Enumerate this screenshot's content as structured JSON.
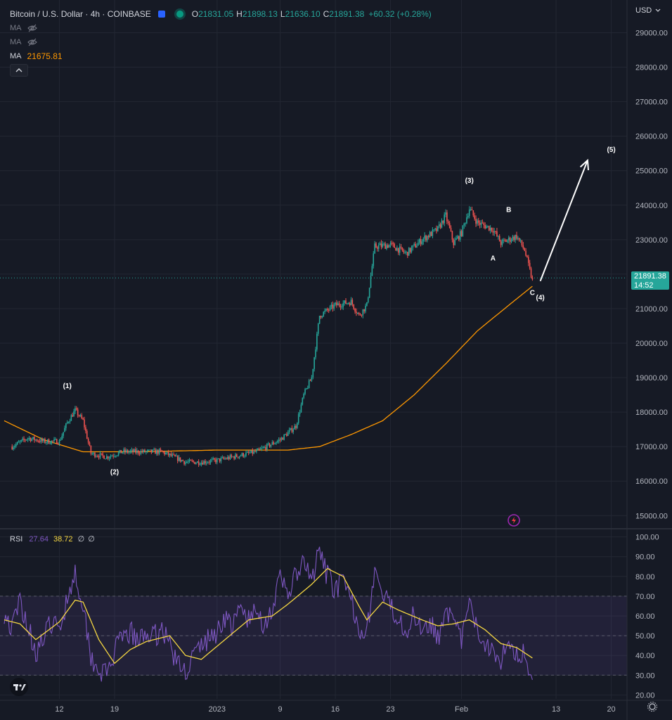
{
  "header": {
    "symbol_title": "Bitcoin / U.S. Dollar · 4h · COINBASE",
    "open_label": "O",
    "open": "21831.05",
    "high_label": "H",
    "high": "21898.13",
    "low_label": "L",
    "low": "21636.10",
    "close_label": "C",
    "close": "21891.38",
    "change": "+60.32 (+0.28%)",
    "flag_icon": "flag-icon",
    "live_icon": "live-status-icon"
  },
  "indicators": {
    "ma1_label": "MA",
    "ma2_label": "MA",
    "ma3_label": "MA",
    "ma3_value": "21675.81",
    "hidden_icon": "eye-off-icon",
    "collapse_icon": "chevron-up-icon"
  },
  "price_scale": {
    "currency": "USD",
    "current_price": "21891.38",
    "countdown": "14:52"
  },
  "rsi_legend": {
    "label": "RSI",
    "value": "27.64",
    "ma_value": "38.72",
    "extra1": "∅",
    "extra2": "∅"
  },
  "colors": {
    "background": "#161A25",
    "up": "#26A69A",
    "down": "#EF5350",
    "ma": "#FF9800",
    "rsi": "#7E57C2",
    "rsi_ma": "#F5D742",
    "grid": "#232733"
  },
  "chart_data": [
    {
      "type": "candlestick",
      "ylim": [
        14700,
        29500
      ],
      "y_ticks": [
        "29000.00",
        "28000.00",
        "27000.00",
        "26000.00",
        "25000.00",
        "24000.00",
        "23000.00",
        "22000.00",
        "21000.00",
        "20000.00",
        "19000.00",
        "18000.00",
        "17000.00",
        "16000.00",
        "15000.00"
      ],
      "y_tick_values": [
        29000,
        28000,
        27000,
        26000,
        25000,
        24000,
        23000,
        22000,
        21000,
        20000,
        19000,
        18000,
        17000,
        16000,
        15000
      ],
      "x_ticks": [
        "12",
        "19",
        "2023",
        "9",
        "16",
        "23",
        "Feb",
        "13",
        "20"
      ],
      "x_tick_dates": [
        "2022-12-12",
        "2022-12-19",
        "2023-01-01",
        "2023-01-09",
        "2023-01-16",
        "2023-01-23",
        "2023-02-01",
        "2023-02-13",
        "2023-02-20"
      ],
      "x_range": [
        "2022-12-05",
        "2023-02-22"
      ],
      "close_path": [
        [
          "2022-12-06",
          17000
        ],
        [
          "2022-12-08",
          17250
        ],
        [
          "2022-12-10",
          17150
        ],
        [
          "2022-12-12",
          17150
        ],
        [
          "2022-12-13",
          17700
        ],
        [
          "2022-12-14",
          18050
        ],
        [
          "2022-12-15",
          17750
        ],
        [
          "2022-12-16",
          16800
        ],
        [
          "2022-12-18",
          16700
        ],
        [
          "2022-12-20",
          16850
        ],
        [
          "2022-12-22",
          16850
        ],
        [
          "2022-12-25",
          16850
        ],
        [
          "2022-12-28",
          16550
        ],
        [
          "2022-12-30",
          16550
        ],
        [
          "2023-01-01",
          16600
        ],
        [
          "2023-01-03",
          16700
        ],
        [
          "2023-01-06",
          16850
        ],
        [
          "2023-01-09",
          17200
        ],
        [
          "2023-01-11",
          17600
        ],
        [
          "2023-01-12",
          18500
        ],
        [
          "2023-01-13",
          19000
        ],
        [
          "2023-01-14",
          20800
        ],
        [
          "2023-01-16",
          21100
        ],
        [
          "2023-01-18",
          21200
        ],
        [
          "2023-01-19",
          20800
        ],
        [
          "2023-01-20",
          21100
        ],
        [
          "2023-01-21",
          22800
        ],
        [
          "2023-01-23",
          22850
        ],
        [
          "2023-01-25",
          22600
        ],
        [
          "2023-01-27",
          23000
        ],
        [
          "2023-01-29",
          23300
        ],
        [
          "2023-01-30",
          23700
        ],
        [
          "2023-01-31",
          22900
        ],
        [
          "2023-02-01",
          23200
        ],
        [
          "2023-02-02",
          23900
        ],
        [
          "2023-02-03",
          23500
        ],
        [
          "2023-02-05",
          23300
        ],
        [
          "2023-02-06",
          22900
        ],
        [
          "2023-02-08",
          23100
        ],
        [
          "2023-02-09",
          22700
        ],
        [
          "2023-02-10",
          21800
        ]
      ],
      "moving_average": {
        "name": "MA",
        "points": [
          [
            "2022-12-05",
            17750
          ],
          [
            "2022-12-10",
            17200
          ],
          [
            "2022-12-15",
            16850
          ],
          [
            "2022-12-22",
            16850
          ],
          [
            "2023-01-01",
            16900
          ],
          [
            "2023-01-10",
            16900
          ],
          [
            "2023-01-14",
            17000
          ],
          [
            "2023-01-18",
            17350
          ],
          [
            "2023-01-22",
            17750
          ],
          [
            "2023-01-26",
            18500
          ],
          [
            "2023-01-30",
            19400
          ],
          [
            "2023-02-03",
            20350
          ],
          [
            "2023-02-07",
            21100
          ],
          [
            "2023-02-10",
            21650
          ]
        ]
      },
      "wave_labels": [
        {
          "text": "(1)",
          "date": "2022-12-13",
          "price": 18700
        },
        {
          "text": "(2)",
          "date": "2022-12-19",
          "price": 16200
        },
        {
          "text": "(3)",
          "date": "2023-02-02",
          "price": 24650
        },
        {
          "text": "B",
          "date": "2023-02-07",
          "price": 23800
        },
        {
          "text": "A",
          "date": "2023-02-05",
          "price": 22400
        },
        {
          "text": "C",
          "date": "2023-02-10",
          "price": 21400
        },
        {
          "text": "(4)",
          "date": "2023-02-11",
          "price": 21250
        },
        {
          "text": "(5)",
          "date": "2023-02-20",
          "price": 25550
        }
      ],
      "projection_arrow": {
        "from": [
          "2023-02-11",
          21800
        ],
        "to": [
          "2023-02-17",
          25300
        ]
      }
    },
    {
      "type": "line",
      "name": "RSI",
      "ylim": [
        18,
        102
      ],
      "y_ticks": [
        "100.00",
        "90.00",
        "80.00",
        "70.00",
        "60.00",
        "50.00",
        "40.00",
        "30.00",
        "20.00"
      ],
      "y_tick_values": [
        100,
        90,
        80,
        70,
        60,
        50,
        40,
        30,
        20
      ],
      "band": [
        30,
        70
      ],
      "middle": 50,
      "rsi_points": [
        [
          "2022-12-05",
          62
        ],
        [
          "2022-12-06",
          53
        ],
        [
          "2022-12-07",
          68
        ],
        [
          "2022-12-08",
          55
        ],
        [
          "2022-12-09",
          42
        ],
        [
          "2022-12-10",
          48
        ],
        [
          "2022-12-11",
          57
        ],
        [
          "2022-12-12",
          52
        ],
        [
          "2022-12-13",
          70
        ],
        [
          "2022-12-14",
          82
        ],
        [
          "2022-12-15",
          66
        ],
        [
          "2022-12-16",
          40
        ],
        [
          "2022-12-17",
          33
        ],
        [
          "2022-12-18",
          30
        ],
        [
          "2022-12-19",
          42
        ],
        [
          "2022-12-20",
          48
        ],
        [
          "2022-12-21",
          52
        ],
        [
          "2022-12-22",
          46
        ],
        [
          "2022-12-23",
          52
        ],
        [
          "2022-12-24",
          49
        ],
        [
          "2022-12-25",
          54
        ],
        [
          "2022-12-26",
          46
        ],
        [
          "2022-12-27",
          35
        ],
        [
          "2022-12-28",
          32
        ],
        [
          "2022-12-29",
          40
        ],
        [
          "2022-12-30",
          45
        ],
        [
          "2023-01-01",
          52
        ],
        [
          "2023-01-02",
          60
        ],
        [
          "2023-01-03",
          54
        ],
        [
          "2023-01-04",
          64
        ],
        [
          "2023-01-05",
          58
        ],
        [
          "2023-01-06",
          62
        ],
        [
          "2023-01-07",
          56
        ],
        [
          "2023-01-08",
          64
        ],
        [
          "2023-01-09",
          78
        ],
        [
          "2023-01-10",
          72
        ],
        [
          "2023-01-11",
          80
        ],
        [
          "2023-01-12",
          86
        ],
        [
          "2023-01-13",
          78
        ],
        [
          "2023-01-14",
          92
        ],
        [
          "2023-01-15",
          80
        ],
        [
          "2023-01-16",
          74
        ],
        [
          "2023-01-17",
          76
        ],
        [
          "2023-01-18",
          68
        ],
        [
          "2023-01-19",
          55
        ],
        [
          "2023-01-20",
          52
        ],
        [
          "2023-01-21",
          83
        ],
        [
          "2023-01-22",
          70
        ],
        [
          "2023-01-23",
          64
        ],
        [
          "2023-01-24",
          60
        ],
        [
          "2023-01-25",
          53
        ],
        [
          "2023-01-26",
          60
        ],
        [
          "2023-01-27",
          55
        ],
        [
          "2023-01-28",
          58
        ],
        [
          "2023-01-29",
          48
        ],
        [
          "2023-01-30",
          66
        ],
        [
          "2023-01-31",
          55
        ],
        [
          "2023-02-01",
          48
        ],
        [
          "2023-02-02",
          66
        ],
        [
          "2023-02-03",
          52
        ],
        [
          "2023-02-04",
          47
        ],
        [
          "2023-02-05",
          44
        ],
        [
          "2023-02-06",
          38
        ],
        [
          "2023-02-07",
          50
        ],
        [
          "2023-02-08",
          40
        ],
        [
          "2023-02-09",
          42
        ],
        [
          "2023-02-10",
          27.64
        ]
      ],
      "rsi_ma_points": [
        [
          "2022-12-05",
          58
        ],
        [
          "2022-12-07",
          56
        ],
        [
          "2022-12-09",
          48
        ],
        [
          "2022-12-11",
          54
        ],
        [
          "2022-12-12",
          57
        ],
        [
          "2022-12-14",
          68
        ],
        [
          "2022-12-15",
          67
        ],
        [
          "2022-12-17",
          48
        ],
        [
          "2022-12-19",
          36
        ],
        [
          "2022-12-21",
          43
        ],
        [
          "2022-12-23",
          47
        ],
        [
          "2022-12-26",
          50
        ],
        [
          "2022-12-28",
          40
        ],
        [
          "2022-12-30",
          38
        ],
        [
          "2023-01-02",
          48
        ],
        [
          "2023-01-05",
          58
        ],
        [
          "2023-01-08",
          60
        ],
        [
          "2023-01-10",
          66
        ],
        [
          "2023-01-13",
          76
        ],
        [
          "2023-01-15",
          84
        ],
        [
          "2023-01-17",
          80
        ],
        [
          "2023-01-19",
          65
        ],
        [
          "2023-01-20",
          58
        ],
        [
          "2023-01-22",
          67
        ],
        [
          "2023-01-24",
          63
        ],
        [
          "2023-01-27",
          58
        ],
        [
          "2023-01-29",
          55
        ],
        [
          "2023-01-31",
          56
        ],
        [
          "2023-02-02",
          58
        ],
        [
          "2023-02-04",
          53
        ],
        [
          "2023-02-06",
          46
        ],
        [
          "2023-02-08",
          44
        ],
        [
          "2023-02-10",
          38.72
        ]
      ]
    }
  ]
}
